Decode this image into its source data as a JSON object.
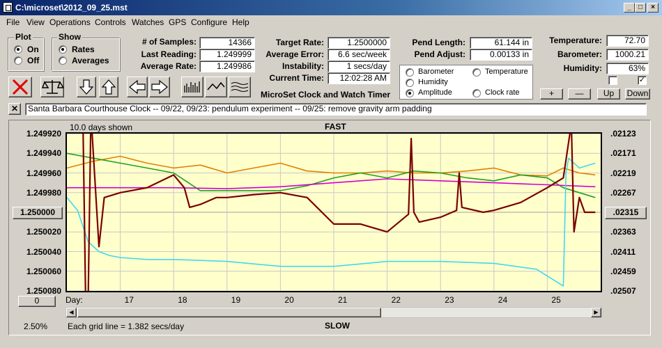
{
  "window": {
    "title": "C:\\microset\\2012_09_25.mst"
  },
  "menu": [
    "File",
    "View",
    "Operations",
    "Controls",
    "Watches",
    "GPS",
    "Configure",
    "Help"
  ],
  "plot": {
    "title": "Plot",
    "on_label": "On",
    "off_label": "Off",
    "selected": "On"
  },
  "show": {
    "title": "Show",
    "rates_label": "Rates",
    "averages_label": "Averages",
    "selected": "Rates"
  },
  "stats": {
    "samples_label": "# of Samples:",
    "samples": "14366",
    "last_reading_label": "Last Reading:",
    "last_reading": "1.249999",
    "avg_rate_label": "Average Rate:",
    "avg_rate": "1.249986",
    "target_rate_label": "Target Rate:",
    "target_rate": "1.2500000",
    "avg_error_label": "Average Error:",
    "avg_error": "6.6 sec/week",
    "instability_label": "Instability:",
    "instability": "1 secs/day",
    "current_time_label": "Current Time:",
    "current_time": "12:02:28 AM",
    "pend_length_label": "Pend Length:",
    "pend_length": "61.144 in",
    "pend_adjust_label": "Pend Adjust:",
    "pend_adjust": "0.00133 in",
    "temperature_label": "Temperature:",
    "temperature": "72.70",
    "barometer_label": "Barometer:",
    "barometer": "1000.21",
    "humidity_label": "Humidity:",
    "humidity": "63%"
  },
  "app_caption": "MicroSet Clock and Watch Timer",
  "sensors": {
    "options": [
      {
        "label": "Barometer",
        "color": "#e07000",
        "selected": false
      },
      {
        "label": "Temperature",
        "color": "#00a000",
        "selected": false
      },
      {
        "label": "Humidity",
        "color": "#c000c0",
        "selected": false
      },
      {
        "label": "Amplitude",
        "color": "#00c8e0",
        "selected": true
      },
      {
        "label": "Clock rate",
        "color": "#000000",
        "selected": false
      }
    ]
  },
  "controls": {
    "plus": "+",
    "minus": "—",
    "up": "Up",
    "down": "Down"
  },
  "notes": "Santa Barbara Courthouse Clock  --  09/22, 09/23: pendulum experiment  --  09/25: remove gravity arm padding",
  "graph": {
    "days_shown": "10.0 days shown",
    "fast_label": "FAST",
    "slow_label": "SLOW",
    "day_label": "Day:",
    "grid_note": "Each grid line = 1.382 secs/day",
    "zoom_pct": "2.50%",
    "center_left": "1.250000",
    "center_right": ".02315",
    "scroll_value": "0"
  },
  "chart_data": {
    "type": "line",
    "y_left_ticks": [
      "1.249920",
      "1.249940",
      "1.249960",
      "1.249980",
      "1.250000",
      "1.250020",
      "1.250040",
      "1.250060",
      "1.250080"
    ],
    "y_right_ticks": [
      ".02123",
      ".02171",
      ".02219",
      ".02267",
      ".02315",
      ".02363",
      ".02411",
      ".02459",
      ".02507"
    ],
    "x_ticks": [
      "17",
      "18",
      "19",
      "20",
      "21",
      "22",
      "23",
      "24",
      "25"
    ],
    "xlim": [
      16,
      26
    ],
    "ylim": [
      1.24992,
      1.25008
    ],
    "grid": true,
    "series": [
      {
        "name": "Barometer",
        "color": "#e08000",
        "x": [
          16,
          16.5,
          17,
          17.5,
          18,
          18.5,
          19,
          19.5,
          20,
          20.5,
          21,
          21.5,
          22,
          22.5,
          23,
          23.5,
          24,
          24.5,
          25,
          25.3,
          25.6,
          25.9
        ],
        "y": [
          1.249955,
          1.249948,
          1.249943,
          1.24995,
          1.249955,
          1.249952,
          1.24996,
          1.249955,
          1.24995,
          1.249958,
          1.24996,
          1.24996,
          1.249958,
          1.24996,
          1.24996,
          1.249958,
          1.249955,
          1.249962,
          1.249963,
          1.249955,
          1.24996,
          1.249962
        ]
      },
      {
        "name": "Temperature",
        "color": "#20a020",
        "x": [
          16,
          16.5,
          17,
          17.5,
          18,
          18.5,
          19,
          19.5,
          20,
          20.5,
          21,
          21.5,
          22,
          22.5,
          23,
          23.5,
          24,
          24.5,
          25,
          25.3,
          25.6,
          25.9
        ],
        "y": [
          1.24994,
          1.249945,
          1.24995,
          1.249955,
          1.24996,
          1.249978,
          1.249978,
          1.249978,
          1.249978,
          1.249973,
          1.249965,
          1.24996,
          1.249965,
          1.249958,
          1.24996,
          1.249965,
          1.249968,
          1.249962,
          1.249965,
          1.249975,
          1.24998,
          1.249985
        ]
      },
      {
        "name": "Humidity",
        "color": "#d000d0",
        "x": [
          16,
          17,
          18,
          19,
          20,
          21,
          22,
          23,
          24,
          25,
          25.9
        ],
        "y": [
          1.249975,
          1.249975,
          1.249975,
          1.249976,
          1.249974,
          1.24997,
          1.249966,
          1.249968,
          1.24997,
          1.249972,
          1.249974
        ]
      },
      {
        "name": "Amplitude",
        "color": "#40d8f0",
        "x": [
          16,
          16.2,
          16.4,
          16.6,
          16.8,
          17,
          17.5,
          18,
          19,
          20,
          21,
          22,
          23,
          24,
          24.8,
          25.3,
          25.35,
          25.4,
          25.6,
          25.9
        ],
        "y": [
          1.249985,
          1.249998,
          1.25003,
          1.25004,
          1.250044,
          1.250046,
          1.250048,
          1.250048,
          1.25005,
          1.250055,
          1.250055,
          1.25005,
          1.25005,
          1.250052,
          1.250058,
          1.250075,
          1.24996,
          1.249945,
          1.249955,
          1.24995
        ]
      },
      {
        "name": "Clock rate",
        "color": "#7a0000",
        "x": [
          16,
          16.3,
          16.35,
          16.4,
          16.45,
          16.6,
          16.7,
          17,
          17.5,
          18,
          18.2,
          18.3,
          18.5,
          18.8,
          19,
          19.5,
          20,
          20.5,
          21,
          21.5,
          22,
          22.4,
          22.45,
          22.5,
          22.6,
          23,
          23.3,
          23.35,
          23.4,
          23.8,
          24,
          24.5,
          25,
          25.3,
          25.45,
          25.5,
          25.6,
          25.7,
          25.9
        ],
        "y": [
          1.249905,
          1.249905,
          1.250085,
          1.250085,
          1.2499,
          1.250035,
          1.249985,
          1.24998,
          1.249975,
          1.249962,
          1.249975,
          1.249995,
          1.249992,
          1.249985,
          1.249985,
          1.249982,
          1.24998,
          1.249985,
          1.250012,
          1.250012,
          1.25002,
          1.250002,
          1.249925,
          1.25,
          1.25001,
          1.250005,
          1.249998,
          1.24996,
          1.249995,
          1.25,
          1.249998,
          1.24999,
          1.249975,
          1.249965,
          1.24991,
          1.25002,
          1.249985,
          1.25,
          1.25
        ]
      }
    ]
  }
}
